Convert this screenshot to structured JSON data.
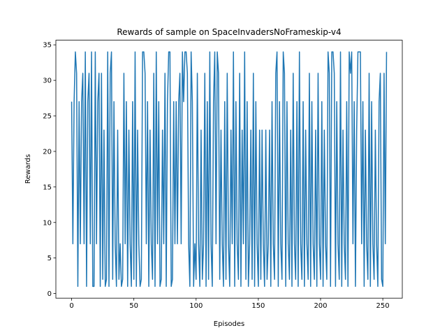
{
  "chart_data": {
    "type": "line",
    "title": "Rewards of sample on SpaceInvadersNoFrameskip-v4",
    "xlabel": "Episodes",
    "ylabel": "Rewards",
    "xlim": [
      -12.65,
      265.65
    ],
    "ylim": [
      -0.65,
      35.65
    ],
    "xticks": [
      0,
      50,
      100,
      150,
      200,
      250
    ],
    "yticks": [
      0,
      5,
      10,
      15,
      20,
      25,
      30,
      35
    ],
    "x": [
      0,
      1,
      2,
      3,
      4,
      5,
      6,
      7,
      8,
      9,
      10,
      11,
      12,
      13,
      14,
      15,
      16,
      17,
      18,
      19,
      20,
      21,
      22,
      23,
      24,
      25,
      26,
      27,
      28,
      29,
      30,
      31,
      32,
      33,
      34,
      35,
      36,
      37,
      38,
      39,
      40,
      41,
      42,
      43,
      44,
      45,
      46,
      47,
      48,
      49,
      50,
      51,
      52,
      53,
      54,
      55,
      56,
      57,
      58,
      59,
      60,
      61,
      62,
      63,
      64,
      65,
      66,
      67,
      68,
      69,
      70,
      71,
      72,
      73,
      74,
      75,
      76,
      77,
      78,
      79,
      80,
      81,
      82,
      83,
      84,
      85,
      86,
      87,
      88,
      89,
      90,
      91,
      92,
      93,
      94,
      95,
      96,
      97,
      98,
      99,
      100,
      101,
      102,
      103,
      104,
      105,
      106,
      107,
      108,
      109,
      110,
      111,
      112,
      113,
      114,
      115,
      116,
      117,
      118,
      119,
      120,
      121,
      122,
      123,
      124,
      125,
      126,
      127,
      128,
      129,
      130,
      131,
      132,
      133,
      134,
      135,
      136,
      137,
      138,
      139,
      140,
      141,
      142,
      143,
      144,
      145,
      146,
      147,
      148,
      149,
      150,
      151,
      152,
      153,
      154,
      155,
      156,
      157,
      158,
      159,
      160,
      161,
      162,
      163,
      164,
      165,
      166,
      167,
      168,
      169,
      170,
      171,
      172,
      173,
      174,
      175,
      176,
      177,
      178,
      179,
      180,
      181,
      182,
      183,
      184,
      185,
      186,
      187,
      188,
      189,
      190,
      191,
      192,
      193,
      194,
      195,
      196,
      197,
      198,
      199,
      200,
      201,
      202,
      203,
      204,
      205,
      206,
      207,
      208,
      209,
      210,
      211,
      212,
      213,
      214,
      215,
      216,
      217,
      218,
      219,
      220,
      221,
      222,
      223,
      224,
      225,
      226,
      227,
      228,
      229,
      230,
      231,
      232,
      233,
      234,
      235,
      236,
      237,
      238,
      239,
      240,
      241,
      242,
      243,
      244,
      245,
      246,
      247,
      248,
      249,
      250,
      251,
      252,
      253
    ],
    "series": [
      {
        "color": "#1f77b4",
        "values": [
          27,
          7,
          27,
          34,
          31,
          1,
          27,
          7,
          27,
          31,
          7,
          34,
          1,
          27,
          31,
          7,
          34,
          1,
          1,
          34,
          7,
          27,
          31,
          1,
          31,
          2,
          23,
          1,
          2,
          34,
          1,
          31,
          34,
          2,
          27,
          7,
          1,
          23,
          2,
          7,
          1,
          2,
          31,
          7,
          27,
          1,
          23,
          7,
          1,
          27,
          2,
          34,
          1,
          23,
          7,
          1,
          2,
          34,
          34,
          31,
          7,
          27,
          1,
          23,
          7,
          2,
          31,
          1,
          34,
          7,
          27,
          1,
          2,
          23,
          7,
          31,
          1,
          27,
          34,
          34,
          1,
          2,
          27,
          7,
          27,
          7,
          27,
          31,
          7,
          34,
          27,
          34,
          34,
          31,
          7,
          1,
          34,
          27,
          1,
          7,
          2,
          31,
          7,
          1,
          23,
          2,
          7,
          31,
          1,
          27,
          2,
          34,
          7,
          1,
          27,
          34,
          7,
          34,
          31,
          2,
          23,
          7,
          1,
          27,
          2,
          31,
          7,
          1,
          23,
          7,
          34,
          1,
          27,
          7,
          2,
          31,
          1,
          23,
          7,
          34,
          2,
          27,
          1,
          7,
          23,
          2,
          31,
          1,
          27,
          7,
          1,
          23,
          2,
          23,
          7,
          1,
          23,
          2,
          7,
          23,
          1,
          27,
          7,
          2,
          31,
          34,
          1,
          27,
          7,
          2,
          34,
          31,
          1,
          27,
          7,
          2,
          23,
          1,
          31,
          7,
          2,
          27,
          1,
          34,
          7,
          2,
          27,
          1,
          23,
          7,
          2,
          31,
          1,
          27,
          7,
          2,
          23,
          1,
          31,
          7,
          2,
          27,
          1,
          23,
          7,
          2,
          34,
          31,
          1,
          34,
          34,
          31,
          1,
          27,
          7,
          2,
          34,
          1,
          23,
          7,
          2,
          27,
          1,
          34,
          31,
          34,
          7,
          27,
          1,
          23,
          34,
          34,
          34,
          7,
          27,
          1,
          23,
          7,
          2,
          31,
          1,
          27,
          7,
          2,
          23,
          7,
          1,
          27,
          31,
          2,
          1,
          31,
          7,
          34
        ]
      }
    ]
  }
}
